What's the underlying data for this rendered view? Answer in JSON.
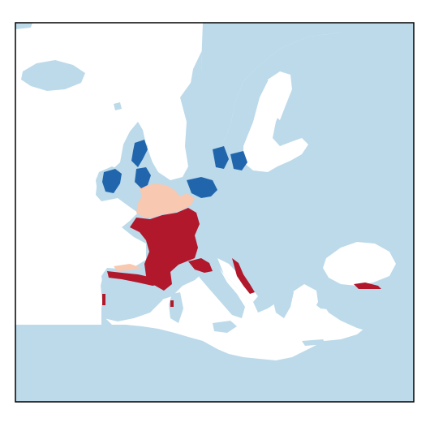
{
  "map": {
    "colors": {
      "background": "#ffffff",
      "land": "#bcdaea",
      "water": "#ffffff",
      "frame": "#000000",
      "dark_blue": "#2166ac",
      "light_red": "#f8c8b0",
      "dark_red": "#b2182b"
    },
    "legend": null
  }
}
